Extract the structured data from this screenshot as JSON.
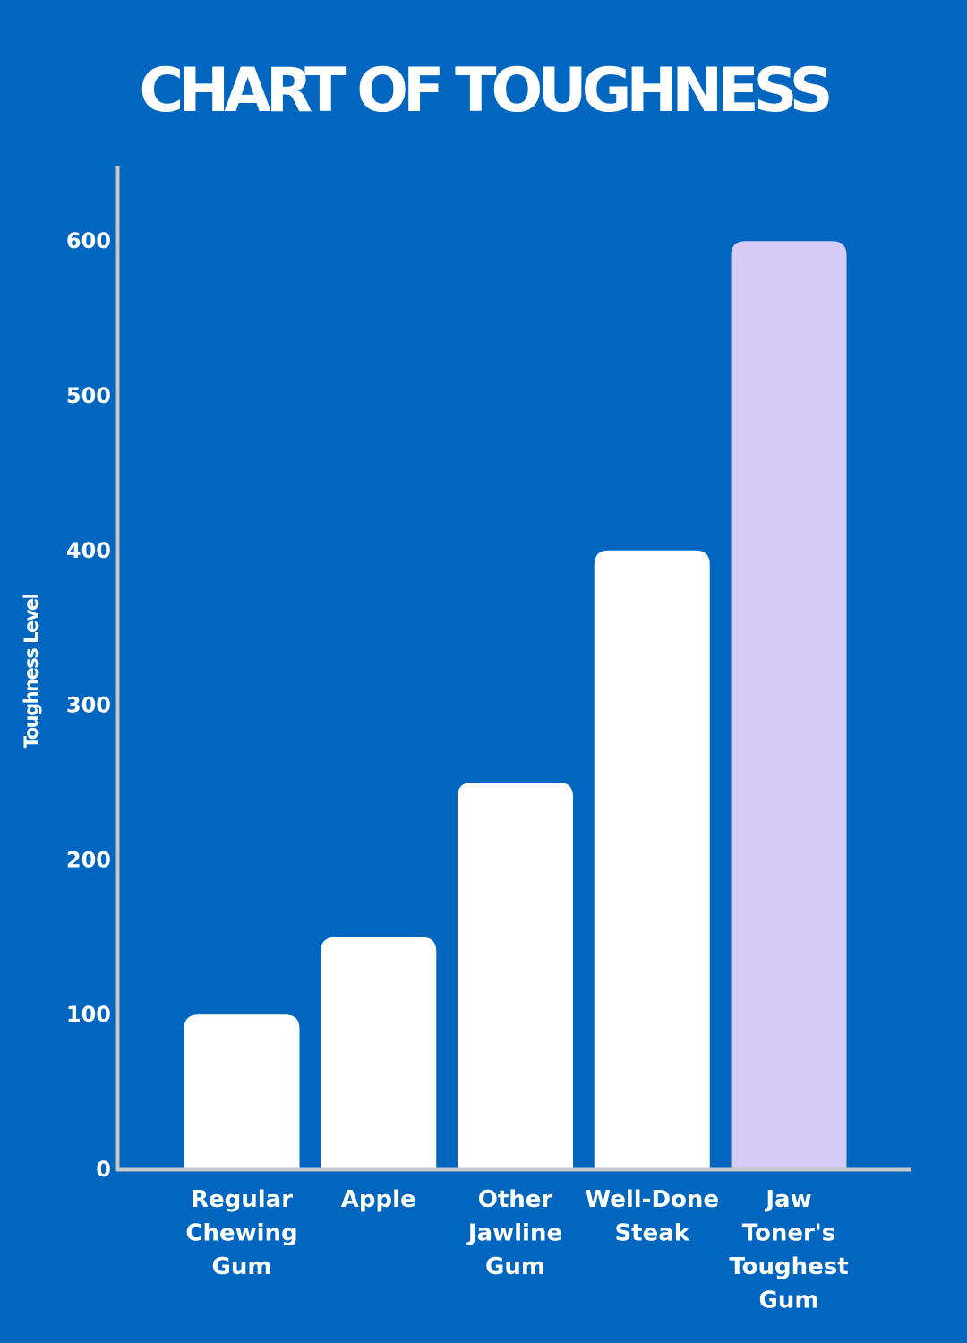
{
  "chart_data": {
    "type": "bar",
    "title": "CHART OF TOUGHNESS",
    "xlabel": "",
    "ylabel": "Toughness Level",
    "ylim": [
      0,
      650
    ],
    "yticks": [
      0,
      100,
      200,
      300,
      400,
      500,
      600
    ],
    "grid": false,
    "categories": [
      "Regular Chewing Gum",
      "Apple",
      "Other Jawline Gum",
      "Well-Done Steak",
      "Jaw Toner's Toughest Gum"
    ],
    "category_lines": [
      [
        "Regular",
        "Chewing",
        "Gum"
      ],
      [
        "Apple"
      ],
      [
        "Other",
        "Jawline",
        "Gum"
      ],
      [
        "Well-Done",
        "Steak"
      ],
      [
        "Jaw",
        "Toner's",
        "Toughest",
        "Gum"
      ]
    ],
    "values": [
      100,
      150,
      250,
      400,
      600
    ],
    "bar_colors": [
      "#ffffff",
      "#ffffff",
      "#ffffff",
      "#ffffff",
      "#d4cbf7"
    ],
    "background_color": "#0066bf",
    "axis_color": "#c8c8c8"
  }
}
